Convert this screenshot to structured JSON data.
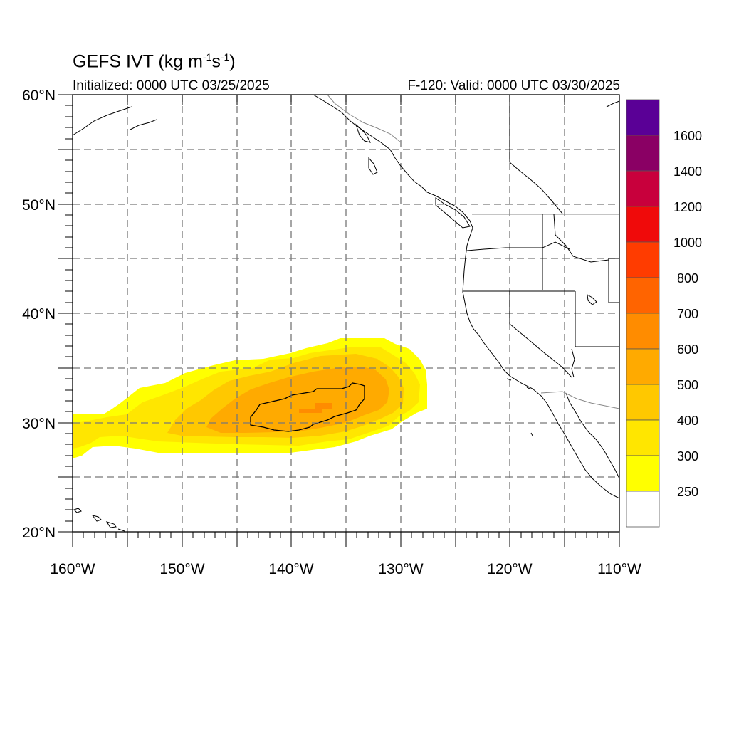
{
  "title": {
    "main": "GEFS IVT (kg m",
    "sup1": "-1",
    "mid": "s",
    "sup2": "-1",
    "end": ")"
  },
  "subtitle_left": "Initialized: 0000 UTC 03/25/2025",
  "subtitle_right": "F-120: Valid: 0000 UTC 03/30/2025",
  "map": {
    "lon_range": [
      -160,
      -110
    ],
    "lat_range": [
      20,
      60
    ],
    "lon_labels": [
      "160°W",
      "150°W",
      "140°W",
      "130°W",
      "120°W",
      "110°W"
    ],
    "lat_labels": [
      "60°N",
      "50°N",
      "40°N",
      "30°N",
      "20°N"
    ],
    "grid": "dashed, every 5°"
  },
  "colorbar": {
    "labels": [
      "1600",
      "1400",
      "1200",
      "1000",
      "800",
      "700",
      "600",
      "500",
      "400",
      "300",
      "250"
    ],
    "colors": [
      "#5a0096",
      "#8a0064",
      "#c8003c",
      "#f00a0a",
      "#ff3c00",
      "#ff6400",
      "#ff8c00",
      "#ffaa00",
      "#ffc800",
      "#ffe600",
      "#ffff00",
      "#ffffff"
    ]
  },
  "chart_data": {
    "type": "heatmap",
    "variable": "IVT",
    "units": "kg m-1 s-1",
    "feature": "Atmospheric river plume extending from ~160°W to ~128°W along ~30–37°N, peak 500–700 centered near 138°W, 31°N",
    "levels": [
      250,
      300,
      400,
      500,
      600,
      700,
      800,
      1000,
      1200,
      1400,
      1600
    ]
  }
}
